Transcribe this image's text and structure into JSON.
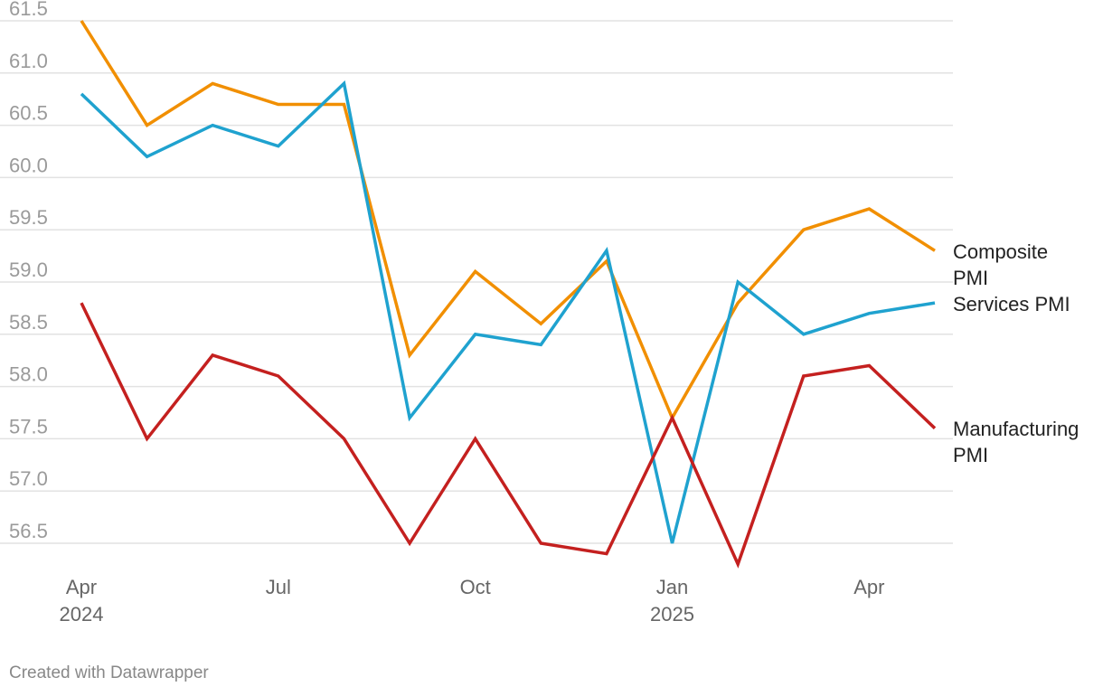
{
  "chart_data": {
    "type": "line",
    "x": [
      "Apr 2024",
      "May 2024",
      "Jun 2024",
      "Jul 2024",
      "Aug 2024",
      "Sep 2024",
      "Oct 2024",
      "Nov 2024",
      "Dec 2024",
      "Jan 2025",
      "Feb 2025",
      "Mar 2025",
      "Apr 2025",
      "May 2025"
    ],
    "x_tick_labels": [
      {
        "index": 0,
        "lines": [
          "Apr",
          "2024"
        ]
      },
      {
        "index": 3,
        "lines": [
          "Jul"
        ]
      },
      {
        "index": 6,
        "lines": [
          "Oct"
        ]
      },
      {
        "index": 9,
        "lines": [
          "Jan",
          "2025"
        ]
      },
      {
        "index": 12,
        "lines": [
          "Apr"
        ]
      }
    ],
    "y_ticks": [
      "56.5",
      "57.0",
      "57.5",
      "58.0",
      "58.5",
      "59.0",
      "59.5",
      "60.0",
      "60.5",
      "61.0",
      "61.5"
    ],
    "ylim": [
      56.5,
      61.5
    ],
    "grid": true,
    "legend": "direct labels at line ends",
    "series": [
      {
        "name": "Composite PMI",
        "label_lines": [
          "Composite",
          "PMI"
        ],
        "color": "#f18f01",
        "values": [
          61.5,
          60.5,
          60.9,
          60.7,
          60.7,
          58.3,
          59.1,
          58.6,
          59.2,
          57.7,
          58.8,
          59.5,
          59.7,
          59.3
        ]
      },
      {
        "name": "Services PMI",
        "label_lines": [
          "Services PMI"
        ],
        "color": "#1fa2cf",
        "values": [
          60.8,
          60.2,
          60.5,
          60.3,
          60.9,
          57.7,
          58.5,
          58.4,
          59.3,
          56.5,
          59.0,
          58.5,
          58.7,
          58.8
        ]
      },
      {
        "name": "Manufacturing PMI",
        "label_lines": [
          "Manufacturing",
          "PMI"
        ],
        "color": "#c4201f",
        "values": [
          58.8,
          57.5,
          58.3,
          58.1,
          57.5,
          56.5,
          57.5,
          56.5,
          56.4,
          57.7,
          56.3,
          58.1,
          58.2,
          57.6
        ]
      }
    ]
  },
  "footer": {
    "credit": "Created with Datawrapper"
  }
}
